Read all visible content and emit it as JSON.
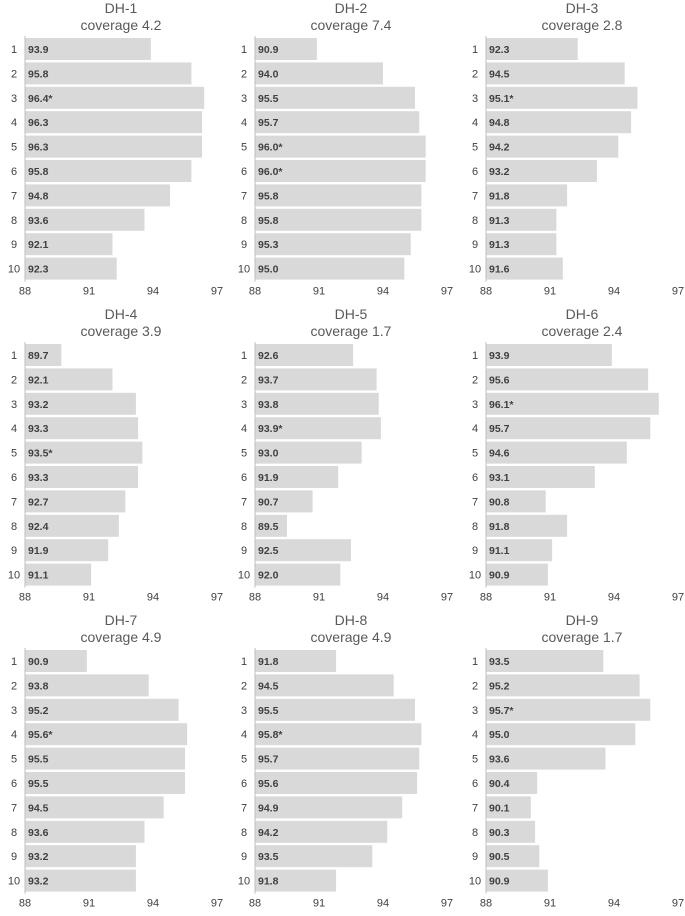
{
  "chart_data": [
    {
      "type": "bar",
      "title": "DH-1",
      "subtitle": "coverage 4.2",
      "categories": [
        "1",
        "2",
        "3",
        "4",
        "5",
        "6",
        "7",
        "8",
        "9",
        "10"
      ],
      "values": [
        93.9,
        95.8,
        96.4,
        96.3,
        96.3,
        95.8,
        94.8,
        93.6,
        92.1,
        92.3
      ],
      "labels": [
        "93.9",
        "95.8",
        "96.4*",
        "96.3",
        "96.3",
        "95.8",
        "94.8",
        "93.6",
        "92.1",
        "92.3"
      ],
      "xlim": [
        88,
        97
      ],
      "xticks": [
        "88",
        "91",
        "94",
        "97"
      ],
      "orientation": "horizontal"
    },
    {
      "type": "bar",
      "title": "DH-2",
      "subtitle": "coverage 7.4",
      "categories": [
        "1",
        "2",
        "3",
        "4",
        "5",
        "6",
        "7",
        "8",
        "9",
        "10"
      ],
      "values": [
        90.9,
        94.0,
        95.5,
        95.7,
        96.0,
        96.0,
        95.8,
        95.8,
        95.3,
        95.0
      ],
      "labels": [
        "90.9",
        "94.0",
        "95.5",
        "95.7",
        "96.0*",
        "96.0*",
        "95.8",
        "95.8",
        "95.3",
        "95.0"
      ],
      "xlim": [
        88,
        97
      ],
      "xticks": [
        "88",
        "91",
        "94",
        "97"
      ],
      "orientation": "horizontal"
    },
    {
      "type": "bar",
      "title": "DH-3",
      "subtitle": "coverage 2.8",
      "categories": [
        "1",
        "2",
        "3",
        "4",
        "5",
        "6",
        "7",
        "8",
        "9",
        "10"
      ],
      "values": [
        92.3,
        94.5,
        95.1,
        94.8,
        94.2,
        93.2,
        91.8,
        91.3,
        91.3,
        91.6
      ],
      "labels": [
        "92.3",
        "94.5",
        "95.1*",
        "94.8",
        "94.2",
        "93.2",
        "91.8",
        "91.3",
        "91.3",
        "91.6"
      ],
      "xlim": [
        88,
        97
      ],
      "xticks": [
        "88",
        "91",
        "94",
        "97"
      ],
      "orientation": "horizontal"
    },
    {
      "type": "bar",
      "title": "DH-4",
      "subtitle": "coverage 3.9",
      "categories": [
        "1",
        "2",
        "3",
        "4",
        "5",
        "6",
        "7",
        "8",
        "9",
        "10"
      ],
      "values": [
        89.7,
        92.1,
        93.2,
        93.3,
        93.5,
        93.3,
        92.7,
        92.4,
        91.9,
        91.1
      ],
      "labels": [
        "89.7",
        "92.1",
        "93.2",
        "93.3",
        "93.5*",
        "93.3",
        "92.7",
        "92.4",
        "91.9",
        "91.1"
      ],
      "xlim": [
        88,
        97
      ],
      "xticks": [
        "88",
        "91",
        "94",
        "97"
      ],
      "orientation": "horizontal"
    },
    {
      "type": "bar",
      "title": "DH-5",
      "subtitle": "coverage 1.7",
      "categories": [
        "1",
        "2",
        "3",
        "4",
        "5",
        "6",
        "7",
        "8",
        "9",
        "10"
      ],
      "values": [
        92.6,
        93.7,
        93.8,
        93.9,
        93.0,
        91.9,
        90.7,
        89.5,
        92.5,
        92.0
      ],
      "labels": [
        "92.6",
        "93.7",
        "93.8",
        "93.9*",
        "93.0",
        "91.9",
        "90.7",
        "89.5",
        "92.5",
        "92.0"
      ],
      "xlim": [
        88,
        97
      ],
      "xticks": [
        "88",
        "91",
        "94",
        "97"
      ],
      "orientation": "horizontal"
    },
    {
      "type": "bar",
      "title": "DH-6",
      "subtitle": "coverage 2.4",
      "categories": [
        "1",
        "2",
        "3",
        "4",
        "5",
        "6",
        "7",
        "8",
        "9",
        "10"
      ],
      "values": [
        93.9,
        95.6,
        96.1,
        95.7,
        94.6,
        93.1,
        90.8,
        91.8,
        91.1,
        90.9
      ],
      "labels": [
        "93.9",
        "95.6",
        "96.1*",
        "95.7",
        "94.6",
        "93.1",
        "90.8",
        "91.8",
        "91.1",
        "90.9"
      ],
      "xlim": [
        88,
        97
      ],
      "xticks": [
        "88",
        "91",
        "94",
        "97"
      ],
      "orientation": "horizontal"
    },
    {
      "type": "bar",
      "title": "DH-7",
      "subtitle": "coverage 4.9",
      "categories": [
        "1",
        "2",
        "3",
        "4",
        "5",
        "6",
        "7",
        "8",
        "9",
        "10"
      ],
      "values": [
        90.9,
        93.8,
        95.2,
        95.6,
        95.5,
        95.5,
        94.5,
        93.6,
        93.2,
        93.2
      ],
      "labels": [
        "90.9",
        "93.8",
        "95.2",
        "95.6*",
        "95.5",
        "95.5",
        "94.5",
        "93.6",
        "93.2",
        "93.2"
      ],
      "xlim": [
        88,
        97
      ],
      "xticks": [
        "88",
        "91",
        "94",
        "97"
      ],
      "orientation": "horizontal"
    },
    {
      "type": "bar",
      "title": "DH-8",
      "subtitle": "coverage 4.9",
      "categories": [
        "1",
        "2",
        "3",
        "4",
        "5",
        "6",
        "7",
        "8",
        "9",
        "10"
      ],
      "values": [
        91.8,
        94.5,
        95.5,
        95.8,
        95.7,
        95.6,
        94.9,
        94.2,
        93.5,
        91.8
      ],
      "labels": [
        "91.8",
        "94.5",
        "95.5",
        "95.8*",
        "95.7",
        "95.6",
        "94.9",
        "94.2",
        "93.5",
        "91.8"
      ],
      "xlim": [
        88,
        97
      ],
      "xticks": [
        "88",
        "91",
        "94",
        "97"
      ],
      "orientation": "horizontal"
    },
    {
      "type": "bar",
      "title": "DH-9",
      "subtitle": "coverage 1.7",
      "categories": [
        "1",
        "2",
        "3",
        "4",
        "5",
        "6",
        "7",
        "8",
        "9",
        "10"
      ],
      "values": [
        93.5,
        95.2,
        95.7,
        95.0,
        93.6,
        90.4,
        90.1,
        90.3,
        90.5,
        90.9
      ],
      "labels": [
        "93.5",
        "95.2",
        "95.7*",
        "95.0",
        "93.6",
        "90.4",
        "90.1",
        "90.3",
        "90.5",
        "90.9"
      ],
      "xlim": [
        88,
        97
      ],
      "xticks": [
        "88",
        "91",
        "94",
        "97"
      ],
      "orientation": "horizontal"
    }
  ]
}
